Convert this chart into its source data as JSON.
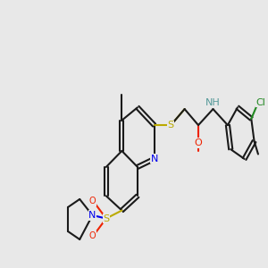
{
  "bg_color": "#e8e8e8",
  "bond_color": "#1a1a1a",
  "figsize": [
    3.0,
    3.0
  ],
  "dpi": 100,
  "lw": 1.5,
  "atom_colors": {
    "N": "#0000ee",
    "S": "#bbaa00",
    "O": "#ee2200",
    "Cl": "#228822",
    "NH": "#559999",
    "C": "#1a1a1a"
  }
}
